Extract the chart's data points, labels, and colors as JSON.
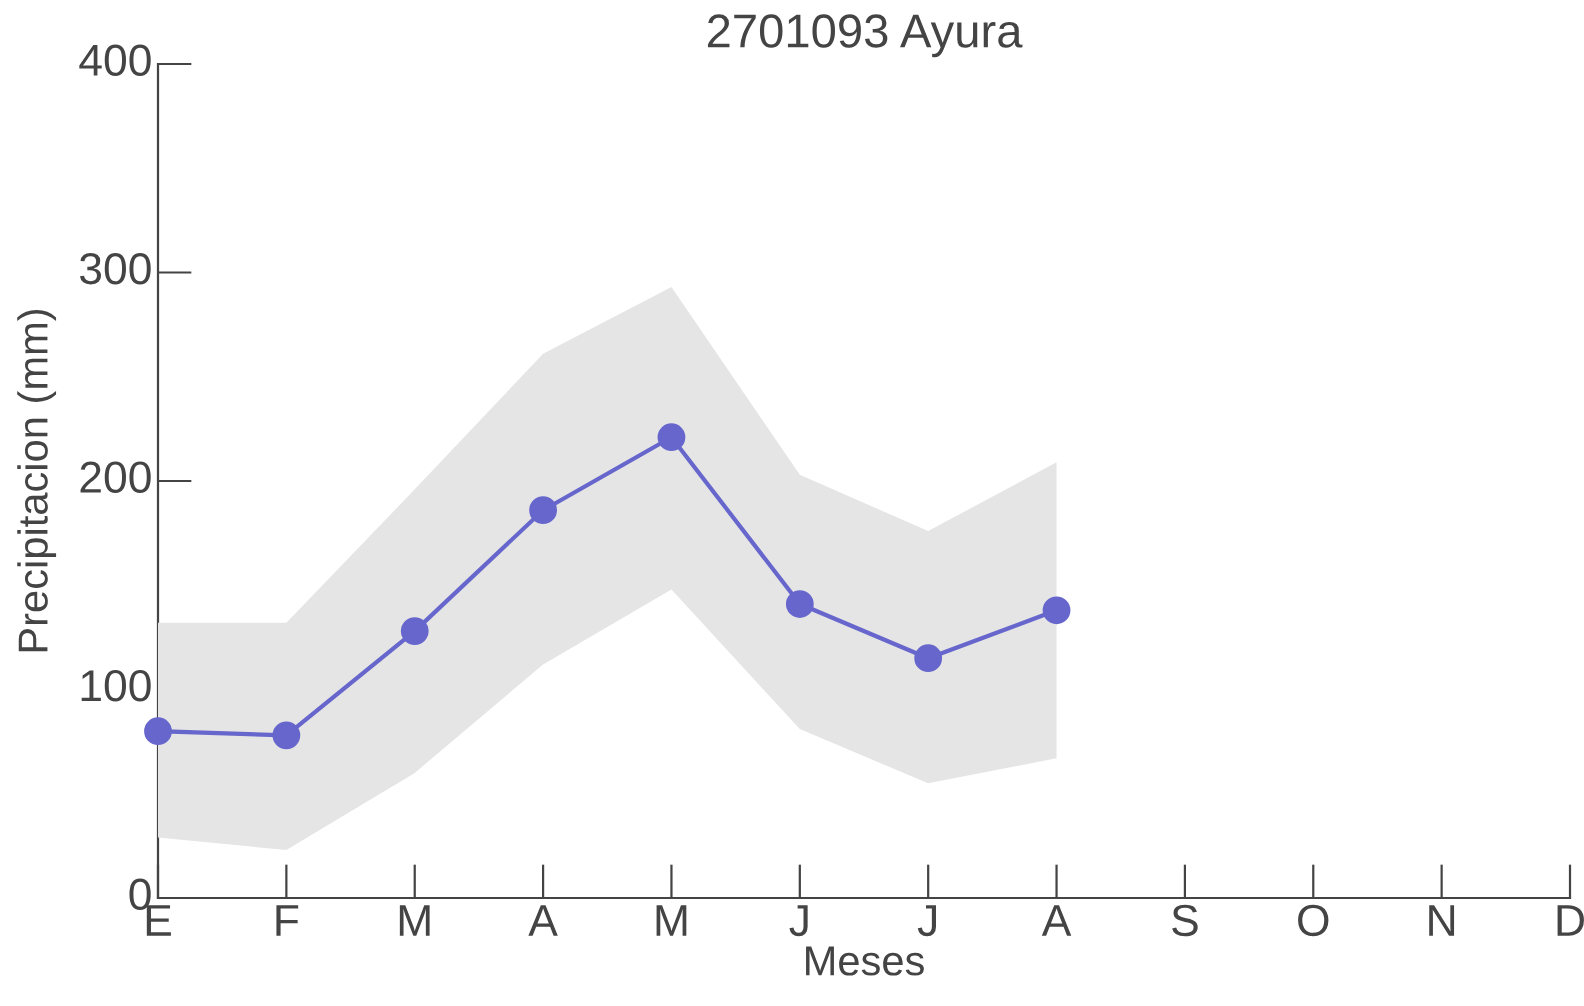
{
  "chart_data": {
    "type": "line",
    "title": "2701093 Ayura",
    "xlabel": "Meses",
    "ylabel": "Precipitacion (mm)",
    "categories": [
      "E",
      "F",
      "M",
      "A",
      "M",
      "J",
      "J",
      "A",
      "S",
      "O",
      "N",
      "D"
    ],
    "series": [
      {
        "color": "#6666cc",
        "values": [
          80,
          78,
          128,
          186,
          221,
          141,
          115,
          138,
          null,
          null,
          null,
          null
        ],
        "lower": [
          29,
          23,
          60,
          112,
          148,
          81,
          55,
          67,
          null,
          null,
          null,
          null
        ],
        "upper": [
          132,
          132,
          196,
          261,
          293,
          203,
          176,
          209,
          null,
          null,
          null,
          null
        ]
      }
    ],
    "ylim": [
      0,
      400
    ],
    "yticks": [
      0,
      100,
      200,
      300,
      400
    ],
    "marker": "circle",
    "line_style": "solid",
    "grid": false,
    "legend": false
  }
}
